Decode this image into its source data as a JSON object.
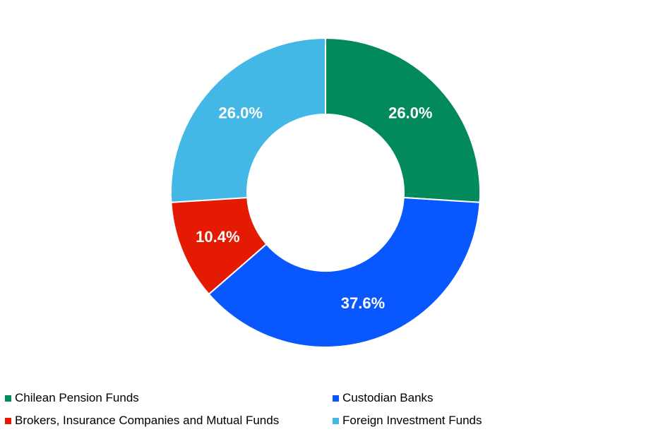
{
  "chart_data": {
    "type": "pie",
    "donut": true,
    "title": "",
    "slices": [
      {
        "label": "Chilean Pension Funds",
        "value": 26.0,
        "display": "26.0%",
        "color": "#028A5C"
      },
      {
        "label": "Custodian Banks",
        "value": 37.6,
        "display": "37.6%",
        "color": "#0857FF"
      },
      {
        "label": "Brokers, Insurance Companies and Mutual Funds",
        "value": 10.4,
        "display": "10.4%",
        "color": "#E41A02"
      },
      {
        "label": "Foreign Investment Funds",
        "value": 26.0,
        "display": "26.0%",
        "color": "#43B8E6"
      }
    ],
    "legend_position": "bottom"
  }
}
